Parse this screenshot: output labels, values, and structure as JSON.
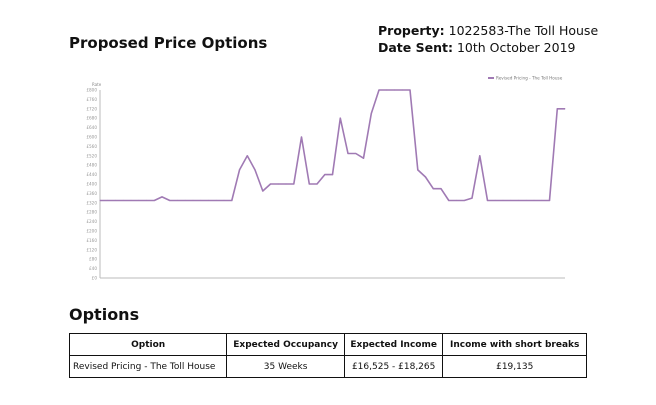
{
  "header": {
    "title": "Proposed Price Options",
    "property_label": "Property:",
    "property_value": "1022583-The Toll House",
    "date_label": "Date Sent:",
    "date_value": "10th October 2019"
  },
  "chart_data": {
    "type": "line",
    "title": "",
    "ylabel": "Rate",
    "xlabel": "",
    "ylim": [
      0,
      800
    ],
    "ytick_step": 40,
    "ytick_prefix": "£",
    "legend_position": "top-right",
    "grid": false,
    "series": [
      {
        "name": "Revised Pricing - The Toll House",
        "color": "#a07ab4",
        "values": [
          330,
          330,
          330,
          330,
          330,
          330,
          330,
          330,
          345,
          330,
          330,
          330,
          330,
          330,
          330,
          330,
          330,
          330,
          460,
          520,
          460,
          370,
          400,
          400,
          400,
          400,
          600,
          400,
          400,
          440,
          440,
          680,
          530,
          530,
          510,
          700,
          800,
          800,
          800,
          800,
          800,
          460,
          430,
          380,
          380,
          330,
          330,
          330,
          340,
          520,
          330,
          330,
          330,
          330,
          330,
          330,
          330,
          330,
          330,
          720,
          720
        ]
      }
    ]
  },
  "options": {
    "heading": "Options",
    "columns": [
      "Option",
      "Expected Occupancy",
      "Expected Income",
      "Income with short breaks"
    ],
    "rows": [
      [
        "Revised Pricing - The Toll House",
        "35 Weeks",
        "£16,525 - £18,265",
        "£19,135"
      ]
    ]
  }
}
